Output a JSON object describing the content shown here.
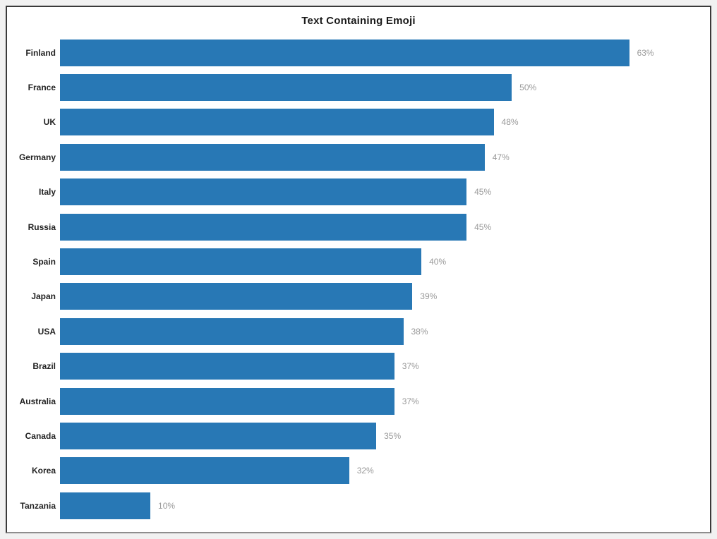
{
  "page": {
    "background_color": "#f1f1f1",
    "frame_border_color": "#3a3a3a",
    "plot_background_color": "#ffffff"
  },
  "chart_data": {
    "type": "bar",
    "orientation": "horizontal",
    "title": "Text Containing Emoji",
    "categories": [
      "Finland",
      "France",
      "UK",
      "Germany",
      "Italy",
      "Russia",
      "Spain",
      "Japan",
      "USA",
      "Brazil",
      "Australia",
      "Canada",
      "Korea",
      "Tanzania"
    ],
    "values": [
      63,
      50,
      48,
      47,
      45,
      45,
      40,
      39,
      38,
      37,
      37,
      35,
      32,
      10
    ],
    "value_labels": [
      "63%",
      "50%",
      "48%",
      "47%",
      "45%",
      "45%",
      "40%",
      "39%",
      "38%",
      "37%",
      "37%",
      "35%",
      "32%",
      "10%"
    ],
    "xlabel": "",
    "ylabel": "",
    "xlim": [
      0,
      71
    ],
    "grid": false,
    "legend": false,
    "value_label_position": "outside-end",
    "bar_color": "#2878b5",
    "category_label_color": "#222222",
    "value_label_color": "#999999",
    "title_color": "#1a1a1a"
  }
}
